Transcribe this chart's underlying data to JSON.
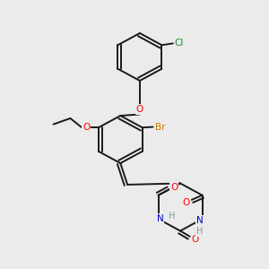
{
  "bg_color": "#ebebeb",
  "bond_color": "#1a1a1a",
  "atom_colors": {
    "O": "#ff0000",
    "N": "#0000cc",
    "H": "#7a9a9a",
    "Br": "#cc7700",
    "Cl": "#228822"
  },
  "lw": 1.4,
  "figsize": [
    3.0,
    3.0
  ],
  "dpi": 100
}
